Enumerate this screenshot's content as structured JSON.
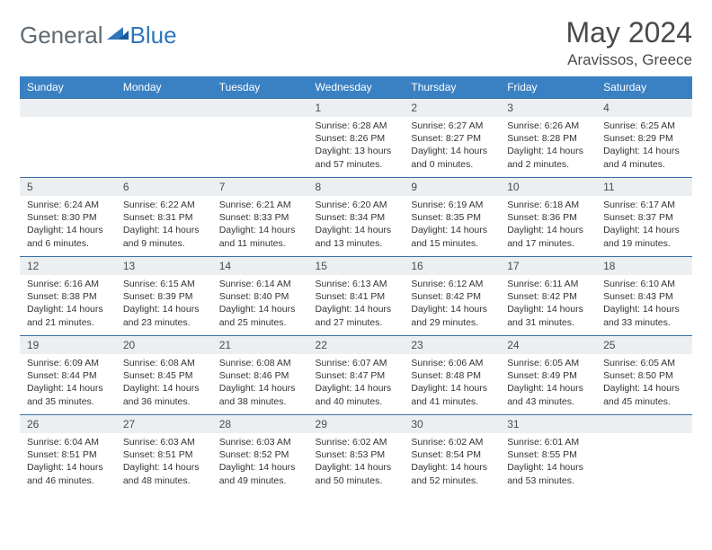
{
  "brand": {
    "part1": "General",
    "part2": "Blue"
  },
  "title": "May 2024",
  "location": "Aravissos, Greece",
  "colors": {
    "header_bg": "#3a81c4",
    "header_text": "#ffffff",
    "daynum_bg": "#eceff1",
    "row_divider": "#3a6fa5",
    "brand_gray": "#5f6a72",
    "brand_blue": "#2f76ba",
    "text": "#333333"
  },
  "weekdays": [
    "Sunday",
    "Monday",
    "Tuesday",
    "Wednesday",
    "Thursday",
    "Friday",
    "Saturday"
  ],
  "grid": [
    [
      null,
      null,
      null,
      {
        "n": "1",
        "sr": "6:28 AM",
        "ss": "8:26 PM",
        "dl": "13 hours and 57 minutes."
      },
      {
        "n": "2",
        "sr": "6:27 AM",
        "ss": "8:27 PM",
        "dl": "14 hours and 0 minutes."
      },
      {
        "n": "3",
        "sr": "6:26 AM",
        "ss": "8:28 PM",
        "dl": "14 hours and 2 minutes."
      },
      {
        "n": "4",
        "sr": "6:25 AM",
        "ss": "8:29 PM",
        "dl": "14 hours and 4 minutes."
      }
    ],
    [
      {
        "n": "5",
        "sr": "6:24 AM",
        "ss": "8:30 PM",
        "dl": "14 hours and 6 minutes."
      },
      {
        "n": "6",
        "sr": "6:22 AM",
        "ss": "8:31 PM",
        "dl": "14 hours and 9 minutes."
      },
      {
        "n": "7",
        "sr": "6:21 AM",
        "ss": "8:33 PM",
        "dl": "14 hours and 11 minutes."
      },
      {
        "n": "8",
        "sr": "6:20 AM",
        "ss": "8:34 PM",
        "dl": "14 hours and 13 minutes."
      },
      {
        "n": "9",
        "sr": "6:19 AM",
        "ss": "8:35 PM",
        "dl": "14 hours and 15 minutes."
      },
      {
        "n": "10",
        "sr": "6:18 AM",
        "ss": "8:36 PM",
        "dl": "14 hours and 17 minutes."
      },
      {
        "n": "11",
        "sr": "6:17 AM",
        "ss": "8:37 PM",
        "dl": "14 hours and 19 minutes."
      }
    ],
    [
      {
        "n": "12",
        "sr": "6:16 AM",
        "ss": "8:38 PM",
        "dl": "14 hours and 21 minutes."
      },
      {
        "n": "13",
        "sr": "6:15 AM",
        "ss": "8:39 PM",
        "dl": "14 hours and 23 minutes."
      },
      {
        "n": "14",
        "sr": "6:14 AM",
        "ss": "8:40 PM",
        "dl": "14 hours and 25 minutes."
      },
      {
        "n": "15",
        "sr": "6:13 AM",
        "ss": "8:41 PM",
        "dl": "14 hours and 27 minutes."
      },
      {
        "n": "16",
        "sr": "6:12 AM",
        "ss": "8:42 PM",
        "dl": "14 hours and 29 minutes."
      },
      {
        "n": "17",
        "sr": "6:11 AM",
        "ss": "8:42 PM",
        "dl": "14 hours and 31 minutes."
      },
      {
        "n": "18",
        "sr": "6:10 AM",
        "ss": "8:43 PM",
        "dl": "14 hours and 33 minutes."
      }
    ],
    [
      {
        "n": "19",
        "sr": "6:09 AM",
        "ss": "8:44 PM",
        "dl": "14 hours and 35 minutes."
      },
      {
        "n": "20",
        "sr": "6:08 AM",
        "ss": "8:45 PM",
        "dl": "14 hours and 36 minutes."
      },
      {
        "n": "21",
        "sr": "6:08 AM",
        "ss": "8:46 PM",
        "dl": "14 hours and 38 minutes."
      },
      {
        "n": "22",
        "sr": "6:07 AM",
        "ss": "8:47 PM",
        "dl": "14 hours and 40 minutes."
      },
      {
        "n": "23",
        "sr": "6:06 AM",
        "ss": "8:48 PM",
        "dl": "14 hours and 41 minutes."
      },
      {
        "n": "24",
        "sr": "6:05 AM",
        "ss": "8:49 PM",
        "dl": "14 hours and 43 minutes."
      },
      {
        "n": "25",
        "sr": "6:05 AM",
        "ss": "8:50 PM",
        "dl": "14 hours and 45 minutes."
      }
    ],
    [
      {
        "n": "26",
        "sr": "6:04 AM",
        "ss": "8:51 PM",
        "dl": "14 hours and 46 minutes."
      },
      {
        "n": "27",
        "sr": "6:03 AM",
        "ss": "8:51 PM",
        "dl": "14 hours and 48 minutes."
      },
      {
        "n": "28",
        "sr": "6:03 AM",
        "ss": "8:52 PM",
        "dl": "14 hours and 49 minutes."
      },
      {
        "n": "29",
        "sr": "6:02 AM",
        "ss": "8:53 PM",
        "dl": "14 hours and 50 minutes."
      },
      {
        "n": "30",
        "sr": "6:02 AM",
        "ss": "8:54 PM",
        "dl": "14 hours and 52 minutes."
      },
      {
        "n": "31",
        "sr": "6:01 AM",
        "ss": "8:55 PM",
        "dl": "14 hours and 53 minutes."
      },
      null
    ]
  ],
  "labels": {
    "sunrise": "Sunrise:",
    "sunset": "Sunset:",
    "daylight": "Daylight:"
  }
}
